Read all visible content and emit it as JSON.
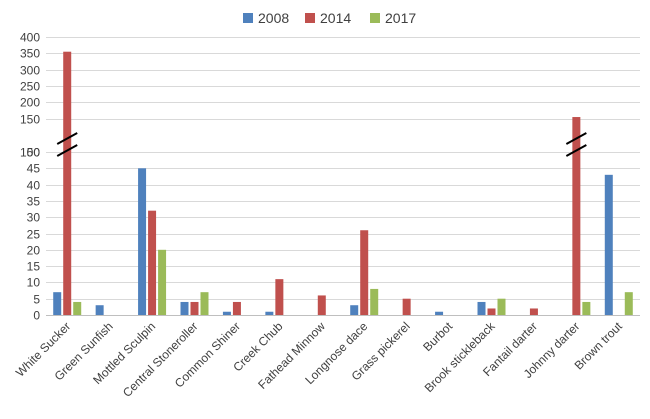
{
  "chart_data": {
    "type": "bar",
    "title": "",
    "xlabel": "",
    "ylabel": "",
    "categories": [
      "White Sucker",
      "Green Sunfish",
      "Mottled Sculpin",
      "Central Stoneroller",
      "Common Shiner",
      "Creek Chub",
      "Fathead Minnow",
      "Longnose dace",
      "Grass pickerel",
      "Burbot",
      "Brook stickleback",
      "Fantail darter",
      "Johnny darter",
      "Brown trout"
    ],
    "series": [
      {
        "name": "2008",
        "color": "#4f81bd",
        "values": [
          7,
          3,
          45,
          4,
          1,
          1,
          0,
          3,
          0,
          1,
          4,
          0,
          0,
          43
        ]
      },
      {
        "name": "2014",
        "color": "#c0504d",
        "values": [
          355,
          0,
          32,
          4,
          4,
          11,
          6,
          26,
          5,
          0,
          2,
          2,
          155,
          0
        ]
      },
      {
        "name": "2017",
        "color": "#9bbb59",
        "values": [
          4,
          0,
          20,
          7,
          0,
          0,
          0,
          8,
          0,
          0,
          5,
          0,
          4,
          7
        ]
      }
    ],
    "y_axis": {
      "broken": true,
      "lower_segment": [
        0,
        50
      ],
      "lower_ticks": [
        0,
        5,
        10,
        15,
        20,
        25,
        30,
        35,
        40,
        45,
        50
      ],
      "upper_segment": [
        100,
        400
      ],
      "upper_ticks": [
        100,
        150,
        200,
        250,
        300,
        350,
        400
      ]
    },
    "legend": "top",
    "grid": true
  }
}
